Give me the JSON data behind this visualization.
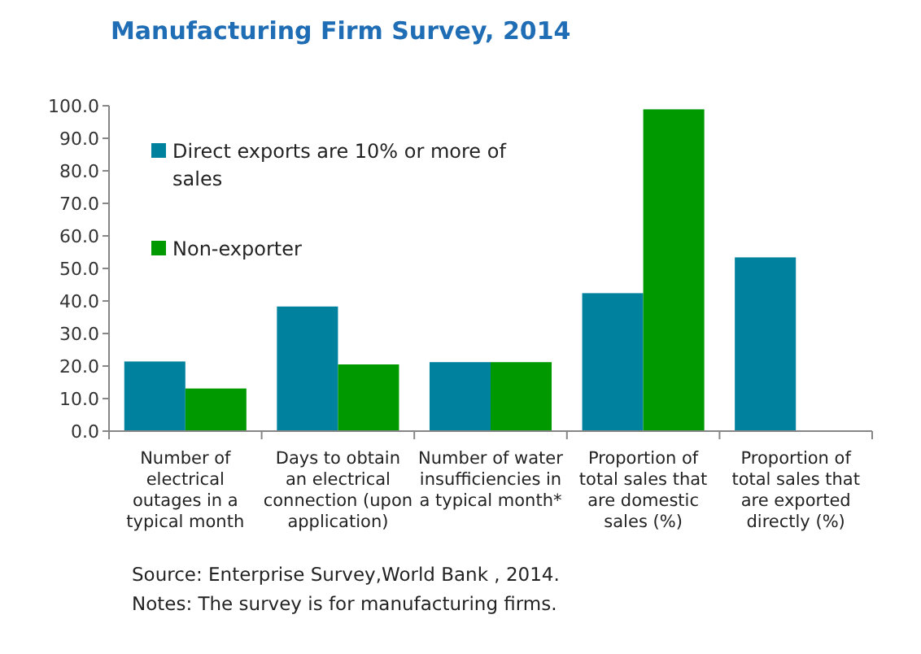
{
  "chart_data": {
    "type": "bar",
    "title": "Manufacturing Firm Survey, 2014",
    "categories": [
      "Number of electrical outages in a typical month",
      "Days to obtain an electrical connection (upon application)",
      "Number of water insufficiencies in a typical month*",
      "Proportion of total sales that are domestic sales (%)",
      "Proportion of total sales that are exported directly (%)"
    ],
    "series": [
      {
        "name": "Direct exports are 10% or more of sales",
        "color": "#00829f",
        "values": [
          21.4,
          38.3,
          21.2,
          42.4,
          53.4
        ]
      },
      {
        "name": "Non-exporter",
        "color": "#009900",
        "values": [
          13.1,
          20.5,
          21.2,
          98.9,
          null
        ]
      }
    ],
    "ylim": [
      0,
      100
    ],
    "yticks": [
      {
        "value": 0,
        "label": "0.0"
      },
      {
        "value": 10,
        "label": "10.0"
      },
      {
        "value": 20,
        "label": "20.0"
      },
      {
        "value": 30,
        "label": "30.0"
      },
      {
        "value": 40,
        "label": "40.0"
      },
      {
        "value": 50,
        "label": "50.0"
      },
      {
        "value": 60,
        "label": "60.0"
      },
      {
        "value": 70,
        "label": "70.0"
      },
      {
        "value": 80,
        "label": "80.0"
      },
      {
        "value": 90,
        "label": "90.0"
      },
      {
        "value": 100,
        "label": "100.0"
      }
    ],
    "legend": "top left",
    "grid": false,
    "annotations": [
      "Source:  Enterprise Survey,World Bank , 2014.",
      "Notes: The survey is for manufacturing firms."
    ]
  }
}
